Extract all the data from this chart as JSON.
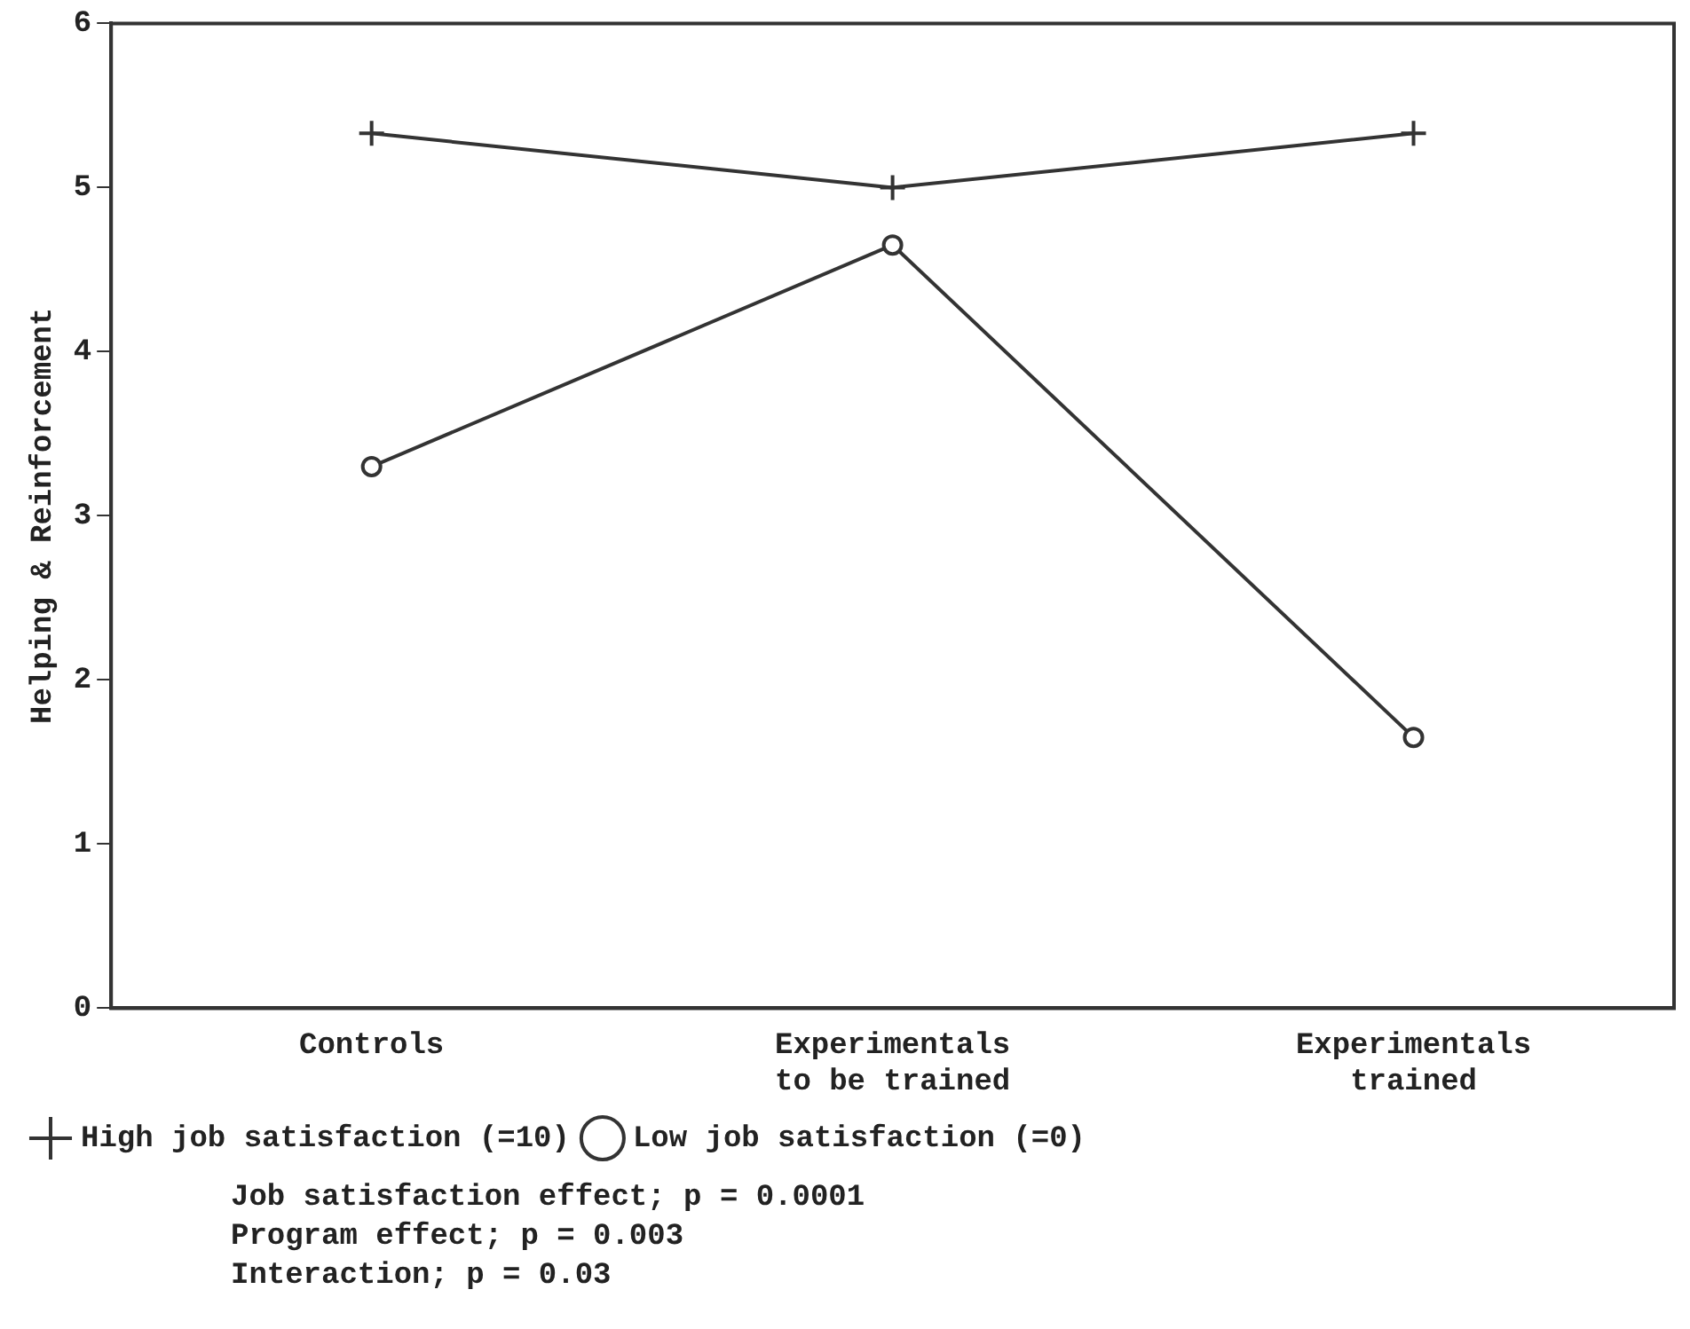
{
  "chart_data": {
    "type": "line",
    "ylabel": "Helping & Reinforcement",
    "categories": [
      "Controls",
      "Experimentals\nto be trained",
      "Experimentals\ntrained"
    ],
    "series": [
      {
        "name": "High job satisfaction (=10)",
        "color": "#333333",
        "values": [
          5.33,
          5.0,
          5.33
        ],
        "marker": "cross"
      },
      {
        "name": "Low job satisfaction (=0)",
        "color": "#333333",
        "values": [
          3.3,
          4.65,
          1.65
        ],
        "marker": "circle"
      }
    ],
    "ylim": [
      0,
      6
    ],
    "yticks": [
      0,
      1,
      2,
      3,
      4,
      5,
      6
    ],
    "grid": false,
    "legend": "bottom left",
    "annotations": [
      "Job satisfaction effect; p = 0.0001",
      "Program effect; p = 0.003",
      "Interaction; p = 0.03"
    ]
  }
}
